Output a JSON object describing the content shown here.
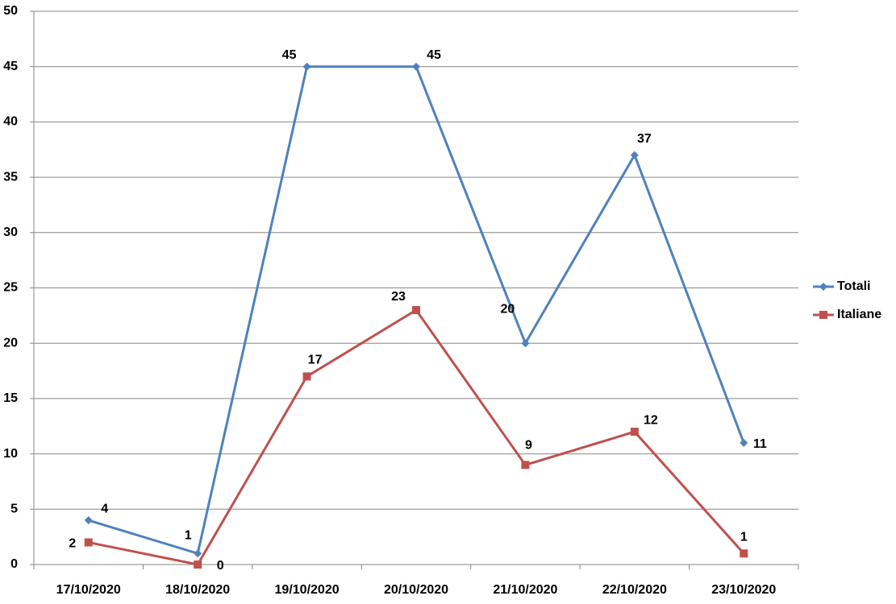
{
  "chart_data": {
    "type": "line",
    "categories": [
      "17/10/2020",
      "18/10/2020",
      "19/10/2020",
      "20/10/2020",
      "21/10/2020",
      "22/10/2020",
      "23/10/2020"
    ],
    "series": [
      {
        "name": "Totali",
        "color": "#4f81bd",
        "marker": "diamond",
        "values": [
          4,
          1,
          45,
          45,
          20,
          37,
          11
        ]
      },
      {
        "name": "Italiane",
        "color": "#c0504d",
        "marker": "square",
        "values": [
          2,
          0,
          17,
          23,
          9,
          12,
          1
        ]
      }
    ],
    "ylim": [
      0,
      50
    ],
    "yticks": [
      0,
      5,
      10,
      15,
      20,
      25,
      30,
      35,
      40,
      45,
      50
    ],
    "grid": true,
    "legend": "right"
  }
}
